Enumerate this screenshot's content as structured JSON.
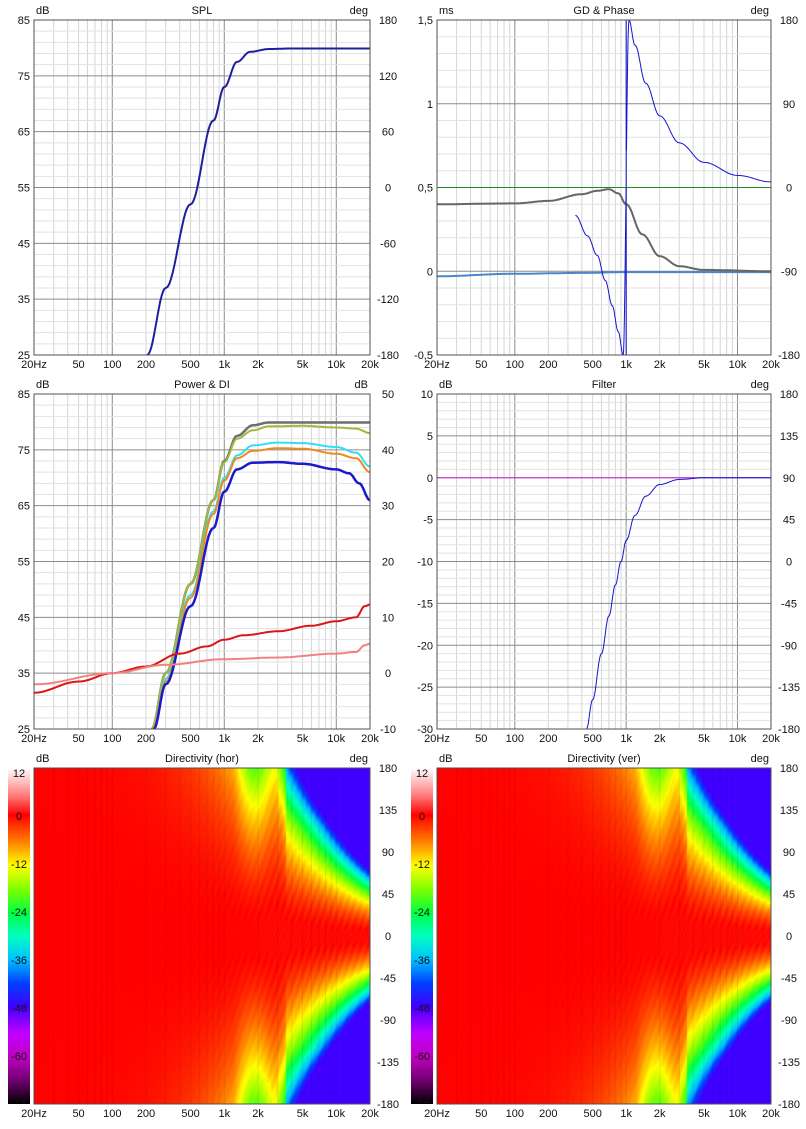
{
  "x_ticks": [
    "20Hz",
    "50",
    "100",
    "200",
    "500",
    "1k",
    "2k",
    "5k",
    "10k",
    "20k"
  ],
  "chart_data": [
    {
      "id": "spl",
      "type": "line",
      "title": "SPL",
      "left_unit": "dB",
      "right_unit": "deg",
      "left_ticks": [
        "85",
        "75",
        "65",
        "55",
        "45",
        "35",
        "25"
      ],
      "right_ticks": [
        "180",
        "120",
        "60",
        "0",
        "-60",
        "-120",
        "-180"
      ],
      "xlim": [
        20,
        20000
      ],
      "ylim": [
        25,
        85
      ],
      "y2lim": [
        -180,
        180
      ],
      "grid": true,
      "series": [
        {
          "color": "#1f1f9e",
          "width": 2,
          "axis": "left",
          "x": [
            205,
            300,
            500,
            800,
            1000,
            1300,
            1700,
            2500,
            4000,
            20000
          ],
          "y": [
            25,
            37,
            52,
            67,
            73,
            77.5,
            79.3,
            79.8,
            79.9,
            79.9
          ]
        }
      ]
    },
    {
      "id": "gd",
      "type": "line",
      "title": "GD & Phase",
      "left_unit": "ms",
      "right_unit": "deg",
      "left_ticks": [
        "1,5",
        "1",
        "0,5",
        "0",
        "-0,5"
      ],
      "right_ticks": [
        "180",
        "90",
        "0",
        "-90",
        "-180"
      ],
      "xlim": [
        20,
        20000
      ],
      "ylim": [
        -0.5,
        1.5
      ],
      "y2lim": [
        -180,
        180
      ],
      "grid": true,
      "series": [
        {
          "color": "#228822",
          "width": 1,
          "axis": "left",
          "x": [
            20,
            20000
          ],
          "y": [
            0.5,
            0.5
          ]
        },
        {
          "color": "#4a86c8",
          "width": 2,
          "axis": "left",
          "x": [
            20,
            100,
            400,
            1000,
            5000,
            20000
          ],
          "y": [
            -0.03,
            -0.015,
            -0.01,
            -0.005,
            -0.005,
            -0.005
          ]
        },
        {
          "color": "#666666",
          "width": 2,
          "axis": "left",
          "x": [
            20,
            100,
            200,
            400,
            550,
            700,
            850,
            1000,
            1400,
            2000,
            3000,
            5000,
            20000
          ],
          "y": [
            0.4,
            0.405,
            0.42,
            0.46,
            0.48,
            0.49,
            0.465,
            0.4,
            0.22,
            0.09,
            0.03,
            0.008,
            0.0
          ]
        },
        {
          "color": "#1414d2",
          "width": 1,
          "axis": "right",
          "x": [
            350,
            450,
            550,
            650,
            750,
            850,
            940,
            1060,
            1200,
            1500,
            2000,
            3000,
            5000,
            10000,
            20000
          ],
          "y": [
            -30,
            -52,
            -73,
            -100,
            -127,
            -155,
            -180,
            180,
            153,
            112,
            77,
            48,
            27,
            13,
            6
          ]
        },
        {
          "color": "#1414d2",
          "width": 1,
          "axis": "right",
          "x": [
            1000,
            1000
          ],
          "y": [
            -180,
            180
          ]
        }
      ]
    },
    {
      "id": "power",
      "type": "line",
      "title": "Power & DI",
      "left_unit": "dB",
      "right_unit": "dB",
      "left_ticks": [
        "85",
        "75",
        "65",
        "55",
        "45",
        "35",
        "25"
      ],
      "right_ticks": [
        "50",
        "40",
        "30",
        "20",
        "10",
        "0",
        "-10"
      ],
      "xlim": [
        20,
        20000
      ],
      "ylim": [
        25,
        85
      ],
      "y2lim": [
        -10,
        50
      ],
      "grid": true,
      "series": [
        {
          "color": "#6e6e6e",
          "width": 2.5,
          "axis": "left",
          "x": [
            225,
            300,
            500,
            800,
            1000,
            1300,
            1800,
            2500,
            20000
          ],
          "y": [
            25,
            35,
            51,
            66,
            73,
            77.5,
            79.4,
            79.9,
            79.9
          ]
        },
        {
          "color": "#9bbb3b",
          "width": 2,
          "axis": "left",
          "x": [
            225,
            300,
            500,
            800,
            1000,
            1300,
            1800,
            2500,
            5000,
            10000,
            15000,
            20000
          ],
          "y": [
            25,
            35,
            51,
            66,
            72.8,
            77,
            78.5,
            79.2,
            79.3,
            79,
            78.8,
            78
          ]
        },
        {
          "color": "#33ddf3",
          "width": 2,
          "axis": "left",
          "x": [
            230,
            300,
            500,
            800,
            1000,
            1300,
            1800,
            3000,
            5000,
            10000,
            15000,
            20000
          ],
          "y": [
            25,
            34,
            49,
            64,
            70,
            74,
            75.8,
            76.3,
            76.2,
            75.5,
            74.5,
            72
          ]
        },
        {
          "color": "#ee8a1e",
          "width": 2,
          "axis": "left",
          "x": [
            230,
            300,
            500,
            800,
            1000,
            1300,
            1800,
            3000,
            5000,
            10000,
            15000,
            20000
          ],
          "y": [
            25,
            33.5,
            48.5,
            63.5,
            69.5,
            73.5,
            74.8,
            75.3,
            75.2,
            74.3,
            73.5,
            71
          ]
        },
        {
          "color": "#1a1acc",
          "width": 2.5,
          "axis": "left",
          "x": [
            235,
            300,
            500,
            800,
            1000,
            1300,
            1800,
            3000,
            5000,
            10000,
            13000,
            16000,
            20000
          ],
          "y": [
            25,
            33,
            47,
            61,
            67.5,
            71.5,
            72.7,
            72.8,
            72.5,
            71.5,
            70.8,
            69,
            66
          ]
        },
        {
          "color": "#dd1515",
          "width": 2,
          "axis": "right",
          "x": [
            20,
            50,
            100,
            200,
            400,
            700,
            1000,
            1500,
            3000,
            6000,
            10000,
            15000,
            18000,
            20000
          ],
          "y": [
            -3.5,
            -1.5,
            0,
            1.2,
            3.5,
            4.8,
            6,
            6.8,
            7.5,
            8.5,
            9.3,
            10,
            12,
            12.3
          ]
        },
        {
          "color": "#f08282",
          "width": 2,
          "axis": "right",
          "x": [
            20,
            100,
            300,
            1000,
            3000,
            10000,
            15000,
            18000,
            20000
          ],
          "y": [
            -2,
            0,
            1.5,
            2.5,
            2.8,
            3.5,
            3.8,
            5,
            5.3
          ]
        }
      ]
    },
    {
      "id": "filter",
      "type": "line",
      "title": "Filter",
      "left_unit": "dB",
      "right_unit": "deg",
      "left_ticks": [
        "10",
        "5",
        "0",
        "-5",
        "-10",
        "-15",
        "-20",
        "-25",
        "-30"
      ],
      "right_ticks": [
        "180",
        "135",
        "90",
        "45",
        "0",
        "-45",
        "-90",
        "-135",
        "-180"
      ],
      "xlim": [
        20,
        20000
      ],
      "ylim": [
        -30,
        10
      ],
      "y2lim": [
        -180,
        180
      ],
      "grid": true,
      "series": [
        {
          "color": "#d020d0",
          "width": 1,
          "axis": "left",
          "x": [
            20,
            20000
          ],
          "y": [
            0,
            0
          ]
        },
        {
          "color": "#1414d2",
          "width": 1,
          "axis": "left",
          "x": [
            440,
            500,
            600,
            700,
            800,
            900,
            1000,
            1200,
            1500,
            2000,
            3000,
            5000,
            20000
          ],
          "y": [
            -30,
            -26.5,
            -21,
            -16.5,
            -12.8,
            -10,
            -7.5,
            -4.5,
            -2.2,
            -0.8,
            -0.2,
            0,
            0
          ]
        }
      ]
    },
    {
      "id": "dirh",
      "type": "heatmap",
      "title": "Directivity (hor)",
      "left_unit": "dB",
      "right_unit": "deg",
      "left_ticks": [
        "12",
        "0",
        "-12",
        "-24",
        "-36",
        "-48",
        "-60",
        "-72"
      ],
      "right_ticks": [
        "180",
        "135",
        "90",
        "45",
        "0",
        "-45",
        "-90",
        "-135",
        "-180"
      ],
      "xlim": [
        20,
        20000
      ],
      "zlim": [
        -72,
        12
      ],
      "y2lim": [
        -180,
        180
      ]
    },
    {
      "id": "dirv",
      "type": "heatmap",
      "title": "Directivity (ver)",
      "left_unit": "dB",
      "right_unit": "deg",
      "left_ticks": [
        "12",
        "0",
        "-12",
        "-24",
        "-36",
        "-48",
        "-60",
        "-72"
      ],
      "right_ticks": [
        "180",
        "135",
        "90",
        "45",
        "0",
        "-45",
        "-90",
        "-135",
        "-180"
      ],
      "xlim": [
        20,
        20000
      ],
      "zlim": [
        -72,
        12
      ],
      "y2lim": [
        -180,
        180
      ]
    }
  ]
}
